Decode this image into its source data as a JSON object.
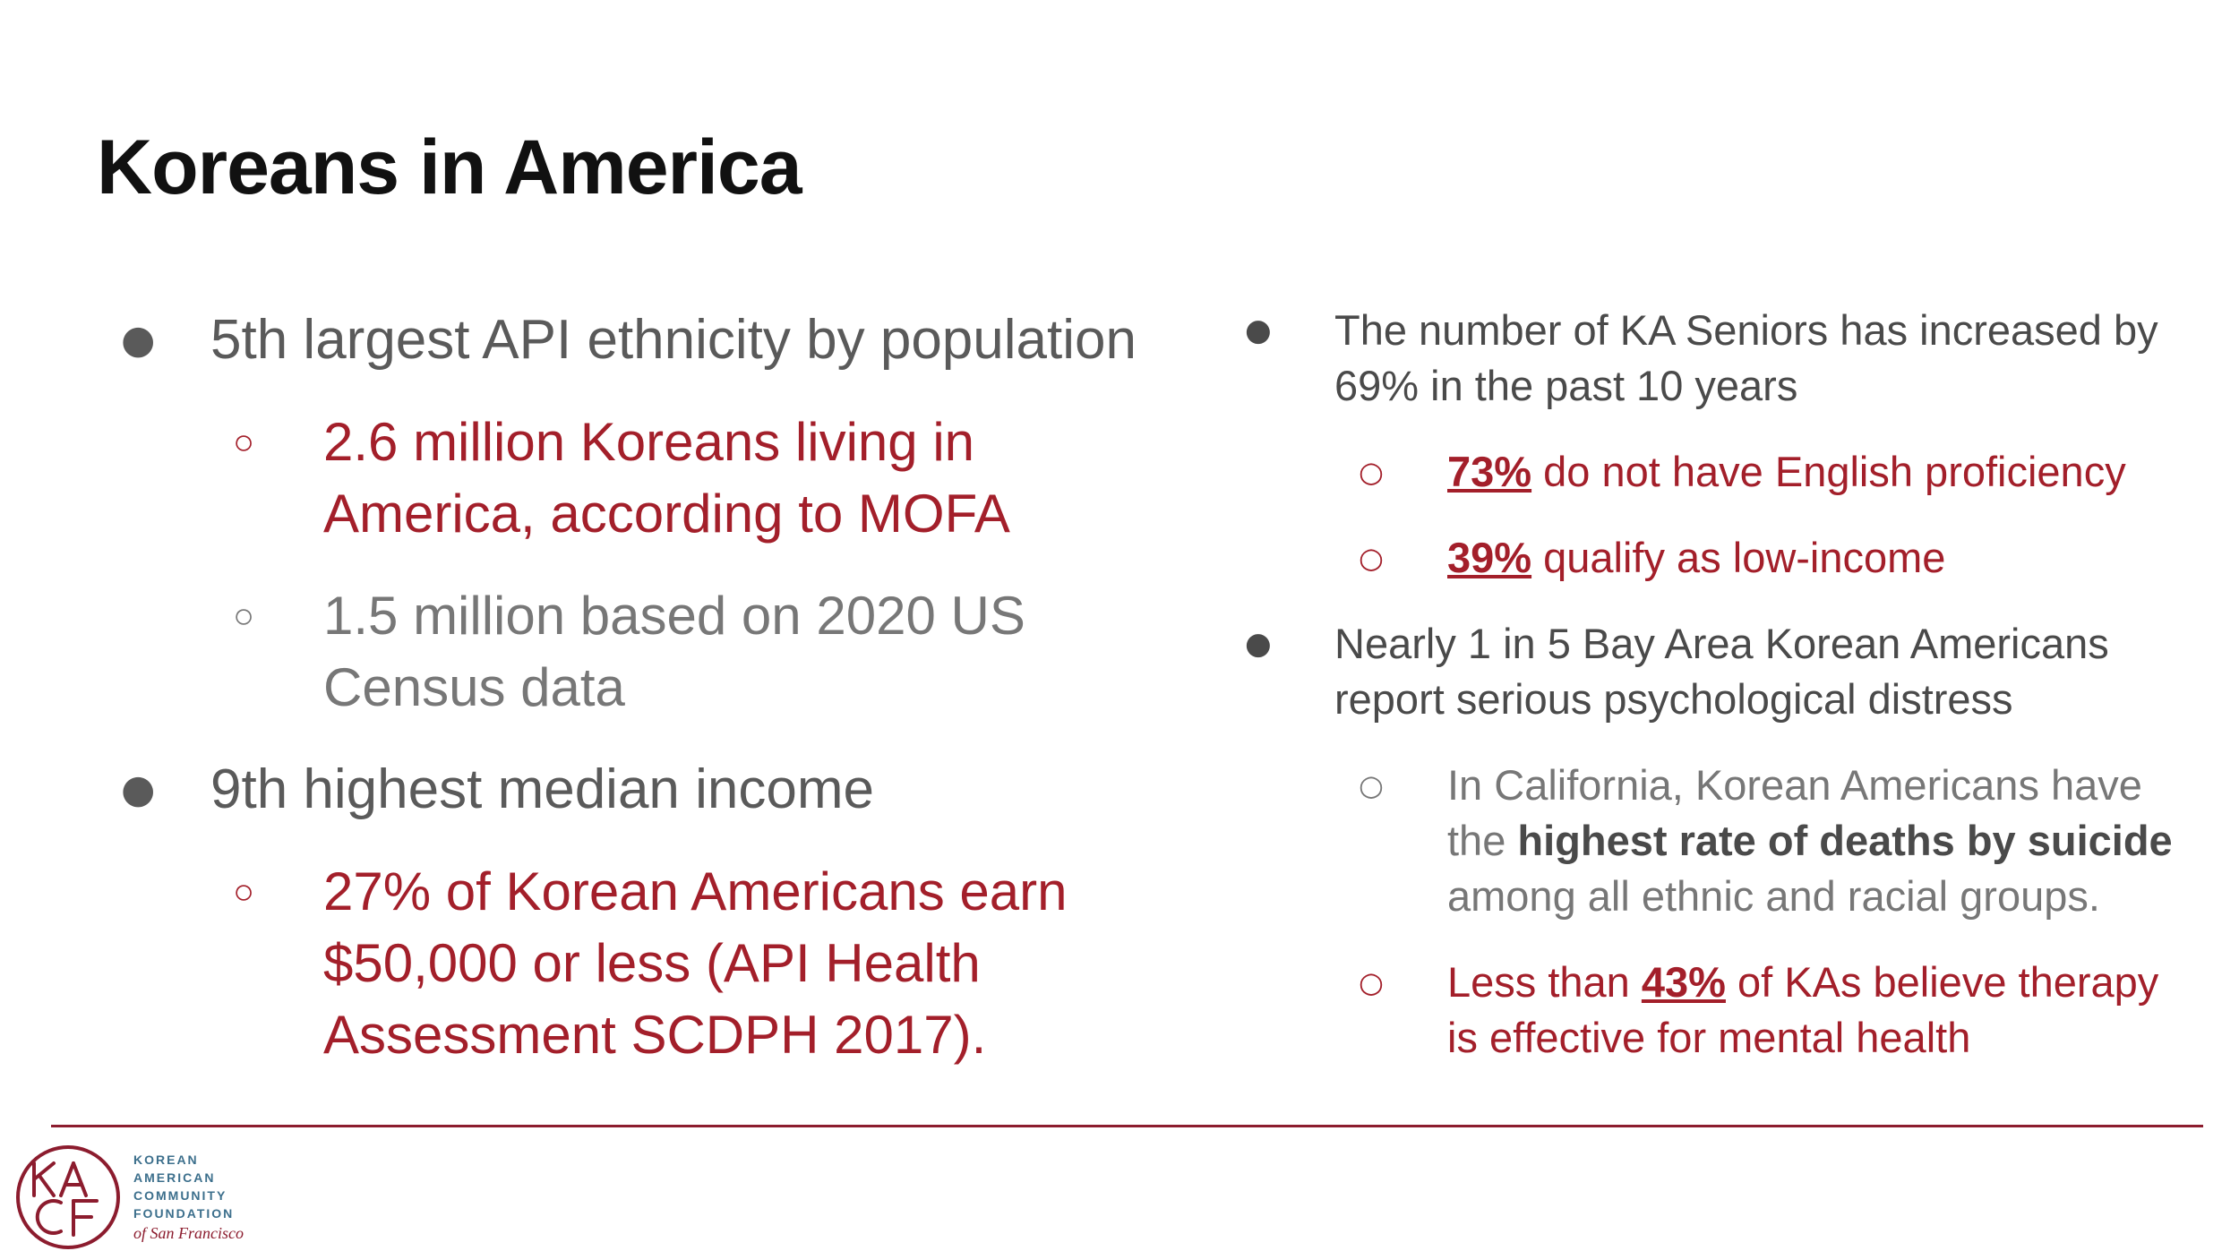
{
  "slide": {
    "title": "Koreans in America"
  },
  "colors": {
    "accent": "#a31f2a",
    "rule": "#8c1c2e",
    "logo_text": "#3c6f8c"
  },
  "left": {
    "b1": "5th largest API ethnicity by population",
    "b1_sub1": "2.6 million Koreans living in America, according to MOFA",
    "b1_sub2": "1.5 million based on 2020 US Census data",
    "b2": "9th highest median income",
    "b2_sub1": "27% of Korean Americans earn $50,000 or less (API Health Assessment SCDPH 2017)."
  },
  "right": {
    "b1": "The number of KA Seniors has increased by 69% in the past 10 years",
    "b1_sub1_pct": "73%",
    "b1_sub1_text": " do not have English proficiency",
    "b1_sub2_pct": "39%",
    "b1_sub2_text": " qualify as low-income",
    "b2": "Nearly 1 in 5 Bay Area Korean Americans report serious psychological distress",
    "b2_sub1_pre": "In California, Korean Americans have the ",
    "b2_sub1_bold": "highest rate of  deaths by suicide",
    "b2_sub1_post": " among all ethnic and racial groups.",
    "b2_sub2_pre": "Less than ",
    "b2_sub2_pct": "43%",
    "b2_sub2_post": " of KAs believe therapy is effective for mental health"
  },
  "logo": {
    "mark": "KACF",
    "line1": "KOREAN",
    "line2": "AMERICAN",
    "line3": "COMMUNITY",
    "line4": "FOUNDATION",
    "sub": "of San Francisco"
  },
  "glyphs": {
    "bullet_filled": "●",
    "bullet_hollow": "○"
  }
}
